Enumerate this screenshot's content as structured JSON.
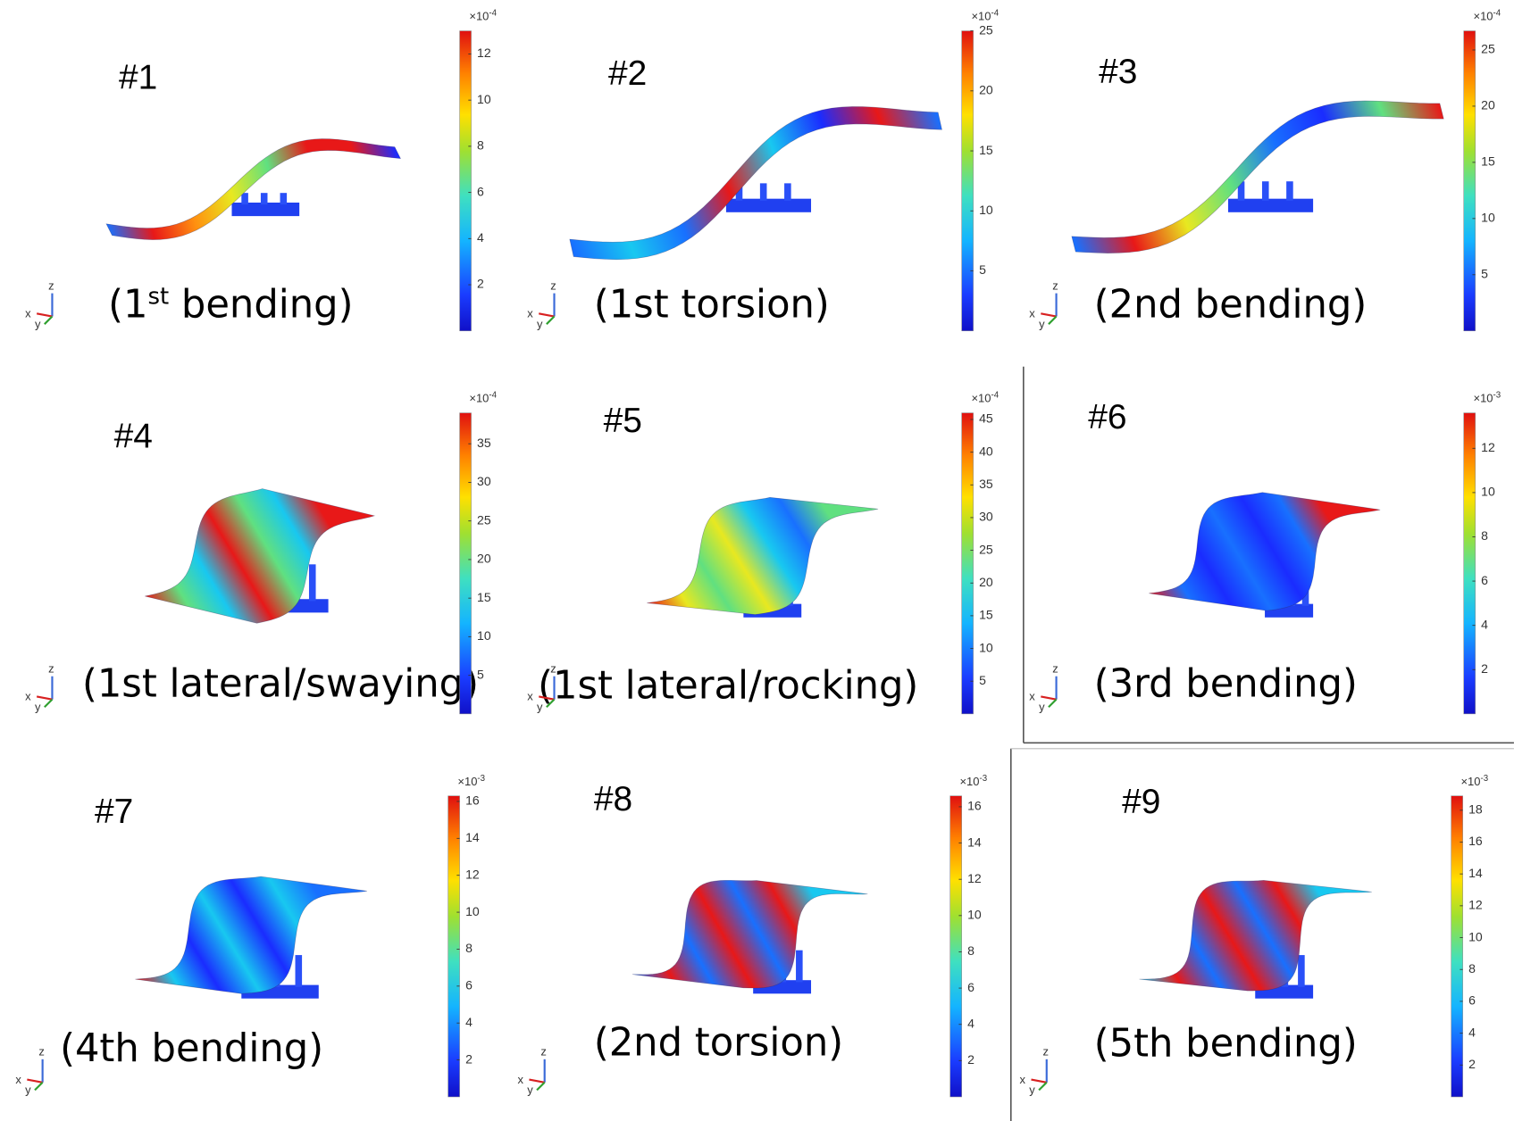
{
  "triad": {
    "x": "x",
    "y": "y",
    "z": "z"
  },
  "panels": [
    {
      "number": "#1",
      "caption": [
        "(1",
        "st",
        " bending)"
      ],
      "scale": {
        "base": "×10",
        "exponent": "-4"
      },
      "range": [
        0,
        13
      ],
      "ticks": [
        2,
        4,
        6,
        8,
        10,
        12
      ]
    },
    {
      "number": "#2",
      "caption": [
        "(1st torsion)"
      ],
      "scale": {
        "base": "×10",
        "exponent": "-4"
      },
      "range": [
        0,
        25
      ],
      "ticks": [
        5,
        10,
        15,
        20,
        25
      ]
    },
    {
      "number": "#3",
      "caption": [
        "(2nd bending)"
      ],
      "scale": {
        "base": "×10",
        "exponent": "-4"
      },
      "range": [
        0,
        26.7
      ],
      "ticks": [
        5,
        10,
        15,
        20,
        25
      ]
    },
    {
      "number": "#4",
      "caption": [
        "(1st lateral/swaying)"
      ],
      "scale": {
        "base": "×10",
        "exponent": "-4"
      },
      "range": [
        0,
        39
      ],
      "ticks": [
        5,
        10,
        15,
        20,
        25,
        30,
        35
      ]
    },
    {
      "number": "#5",
      "caption": [
        "(1st lateral/rocking)"
      ],
      "scale": {
        "base": "×10",
        "exponent": "-4"
      },
      "range": [
        0,
        46
      ],
      "ticks": [
        5,
        10,
        15,
        20,
        25,
        30,
        35,
        40,
        45
      ]
    },
    {
      "number": "#6",
      "caption": [
        "(3rd bending)"
      ],
      "scale": {
        "base": "×10",
        "exponent": "-3"
      },
      "range": [
        0,
        13.6
      ],
      "ticks": [
        2,
        4,
        6,
        8,
        10,
        12
      ]
    },
    {
      "number": "#7",
      "caption": [
        "(4th bending)"
      ],
      "scale": {
        "base": "×10",
        "exponent": "-3"
      },
      "range": [
        0,
        16.3
      ],
      "ticks": [
        2,
        4,
        6,
        8,
        10,
        12,
        14,
        16
      ]
    },
    {
      "number": "#8",
      "caption": [
        "(2nd torsion)"
      ],
      "scale": {
        "base": "×10",
        "exponent": "-3"
      },
      "range": [
        0,
        16.6
      ],
      "ticks": [
        2,
        4,
        6,
        8,
        10,
        12,
        14,
        16
      ]
    },
    {
      "number": "#9",
      "caption": [
        "(5th bending)"
      ],
      "scale": {
        "base": "×10",
        "exponent": "-3"
      },
      "range": [
        0,
        18.9
      ],
      "ticks": [
        2,
        4,
        6,
        8,
        10,
        12,
        14,
        16,
        18
      ]
    }
  ]
}
